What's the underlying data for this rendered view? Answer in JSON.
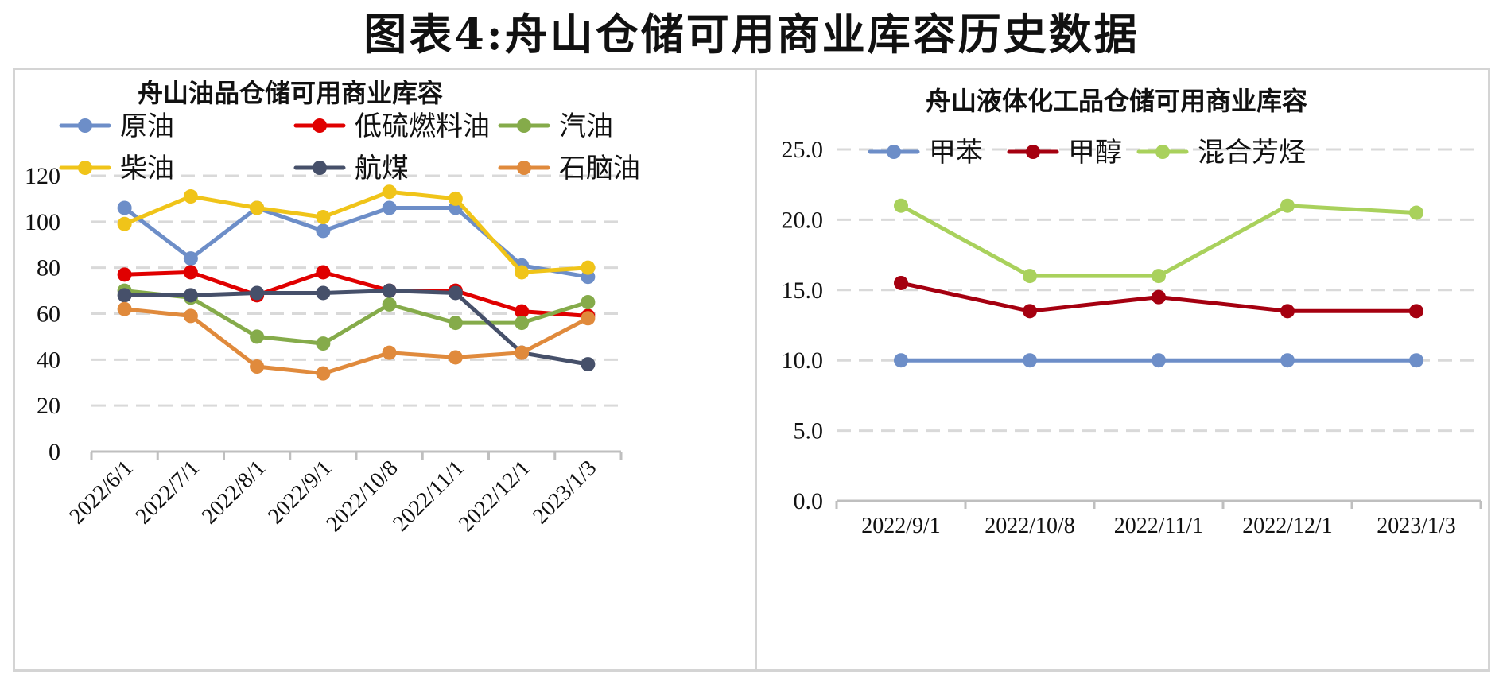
{
  "page": {
    "title": "图表4:舟山仓储可用商业库容历史数据"
  },
  "chart_data": [
    {
      "type": "line",
      "title": "舟山油品仓储可用商业库容",
      "categories": [
        "2022/6/1",
        "2022/7/1",
        "2022/8/1",
        "2022/9/1",
        "2022/10/8",
        "2022/11/1",
        "2022/12/1",
        "2023/1/3"
      ],
      "ylim": [
        0,
        120
      ],
      "yticks": [
        0,
        20,
        40,
        60,
        80,
        100,
        120
      ],
      "ytick_labels": [
        "0",
        "20",
        "40",
        "60",
        "80",
        "100",
        "120"
      ],
      "grid": true,
      "legend_position": "top",
      "series": [
        {
          "name": "原油",
          "color": "#6d8ec8",
          "values": [
            106,
            84,
            106,
            96,
            106,
            106,
            81,
            76
          ]
        },
        {
          "name": "低硫燃料油",
          "color": "#e00000",
          "values": [
            77,
            78,
            68,
            78,
            70,
            70,
            61,
            59
          ]
        },
        {
          "name": "汽油",
          "color": "#85ab4a",
          "values": [
            70,
            67,
            50,
            47,
            64,
            56,
            56,
            65
          ]
        },
        {
          "name": "柴油",
          "color": "#f0c419",
          "values": [
            99,
            111,
            106,
            102,
            113,
            110,
            78,
            80
          ]
        },
        {
          "name": "航煤",
          "color": "#46506a",
          "values": [
            68,
            68,
            69,
            69,
            70,
            69,
            43,
            38
          ]
        },
        {
          "name": "石脑油",
          "color": "#e08a3c",
          "values": [
            62,
            59,
            37,
            34,
            43,
            41,
            43,
            58
          ]
        }
      ]
    },
    {
      "type": "line",
      "title": "舟山液体化工品仓储可用商业库容",
      "categories": [
        "2022/9/1",
        "2022/10/8",
        "2022/11/1",
        "2022/12/1",
        "2023/1/3"
      ],
      "ylim": [
        0,
        25
      ],
      "yticks": [
        0,
        5,
        10,
        15,
        20,
        25
      ],
      "ytick_labels": [
        "0.0",
        "5.0",
        "10.0",
        "15.0",
        "20.0",
        "25.0"
      ],
      "grid": true,
      "legend_position": "top",
      "series": [
        {
          "name": "甲苯",
          "color": "#6d8ec8",
          "values": [
            10.0,
            10.0,
            10.0,
            10.0,
            10.0
          ]
        },
        {
          "name": "甲醇",
          "color": "#a50010",
          "values": [
            15.5,
            13.5,
            14.5,
            13.5,
            13.5
          ]
        },
        {
          "name": "混合芳烃",
          "color": "#a9d15c",
          "values": [
            21.0,
            16.0,
            16.0,
            21.0,
            20.5
          ]
        }
      ]
    }
  ]
}
